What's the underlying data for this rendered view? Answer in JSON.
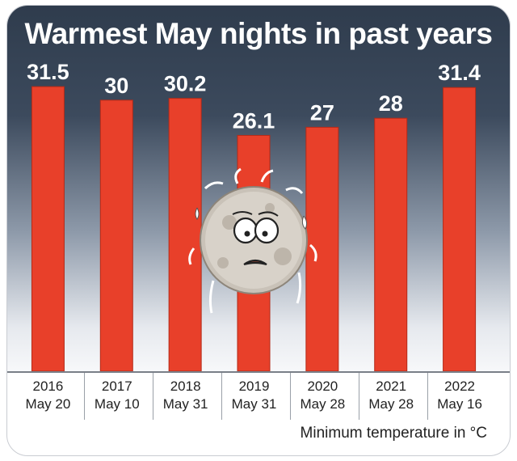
{
  "chart_data": {
    "type": "bar",
    "title": "Warmest May nights in past years",
    "categories": [
      {
        "year": "2016",
        "date": "May 20"
      },
      {
        "year": "2017",
        "date": "May 10"
      },
      {
        "year": "2018",
        "date": "May 31"
      },
      {
        "year": "2019",
        "date": "May 31"
      },
      {
        "year": "2020",
        "date": "May 28"
      },
      {
        "year": "2021",
        "date": "May 28"
      },
      {
        "year": "2022",
        "date": "May 16"
      }
    ],
    "values": [
      31.5,
      30,
      30.2,
      26.1,
      27,
      28,
      31.4
    ],
    "value_labels": [
      "31.5",
      "30",
      "30.2",
      "26.1",
      "27",
      "28",
      "31.4"
    ],
    "ylim": [
      0,
      33.3
    ],
    "grid": false,
    "caption": "Minimum temperature in °C",
    "bar_color": "#e8402a",
    "background": "gradient slate to white"
  },
  "illustration": "sweating-moon-icon"
}
